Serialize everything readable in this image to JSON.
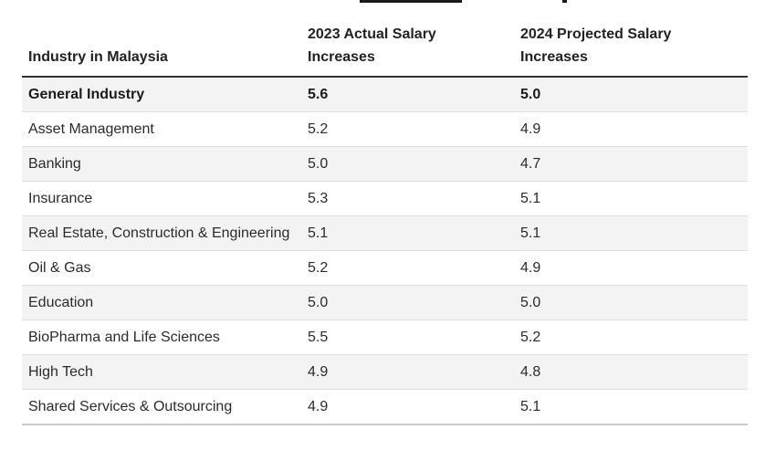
{
  "table": {
    "headers": [
      "Industry in Malaysia",
      "2023 Actual Salary Increases",
      "2024 Projected Salary Increases"
    ],
    "rows": [
      [
        "General Industry",
        "5.6",
        "5.0"
      ],
      [
        "Asset Management",
        "5.2",
        "4.9"
      ],
      [
        "Banking",
        "5.0",
        "4.7"
      ],
      [
        "Insurance",
        "5.3",
        "5.1"
      ],
      [
        "Real Estate, Construction & Engineering",
        "5.1",
        "5.1"
      ],
      [
        "Oil & Gas",
        "5.2",
        "4.9"
      ],
      [
        "Education",
        "5.0",
        "5.0"
      ],
      [
        "BioPharma and Life Sciences",
        "5.5",
        "5.2"
      ],
      [
        "High Tech",
        "4.9",
        "4.8"
      ],
      [
        "Shared Services & Outsourcing",
        "4.9",
        "5.1"
      ]
    ]
  }
}
